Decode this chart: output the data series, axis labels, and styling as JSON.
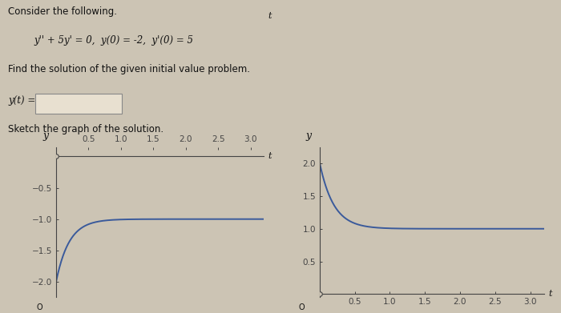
{
  "title_line1": "Consider the following.",
  "title_line2": "y'' + 5y' = 0,  y(0) = -2,  y'(0) = 5",
  "subtitle": "Find the solution of the given initial value problem.",
  "label_yt": "y(t) =",
  "sketch_label": "Sketch the graph of the solution.",
  "t_min": 0.0,
  "t_max": 3.2,
  "left_ylim": [
    -2.25,
    0.15
  ],
  "right_ylim": [
    -0.05,
    2.25
  ],
  "left_yticks": [
    -2.0,
    -1.5,
    -1.0,
    -0.5
  ],
  "right_yticks": [
    0.5,
    1.0,
    1.5,
    2.0
  ],
  "xticks": [
    0.5,
    1.0,
    1.5,
    2.0,
    2.5,
    3.0
  ],
  "line_color": "#3a5a9b",
  "bg_color": "#ccc4b4",
  "axes_color": "#444444",
  "text_color": "#111111",
  "font_size": 8.5,
  "small_font_size": 7.5,
  "eq_font_size": 8.5
}
